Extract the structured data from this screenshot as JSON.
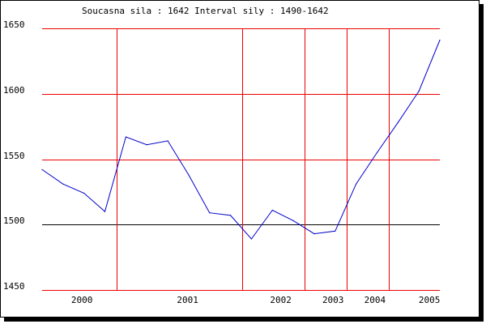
{
  "chart_data": {
    "type": "line",
    "title": "Soucasna sila : 1642  Interval sily : 1490-1642",
    "xlabel": "",
    "ylabel": "",
    "ylim": [
      1450,
      1650
    ],
    "y_ticks": [
      1450,
      1500,
      1550,
      1600,
      1650
    ],
    "x_year_labels": [
      "2000",
      "2001",
      "2002",
      "2003",
      "2004",
      "2005"
    ],
    "year_label_positions_index": [
      3.8,
      13.9,
      22.8,
      27.8,
      31.8,
      37.0
    ],
    "vertical_gridline_indices": [
      7.1,
      19.1,
      25.1,
      29.1,
      33.1
    ],
    "grid": true,
    "grid_color": "#ee0000",
    "baseline_value": 1500,
    "baseline_color": "#000000",
    "series": [
      {
        "color": "#0000cc",
        "x": [
          0,
          2,
          4,
          6,
          8,
          10,
          12,
          14,
          16,
          18,
          20,
          22,
          24,
          26,
          28,
          30,
          32,
          34,
          36,
          38
        ],
        "values": [
          1542,
          1531,
          1524,
          1510,
          1567,
          1561,
          1564,
          1538,
          1509,
          1507,
          1489,
          1511,
          1503,
          1493,
          1495,
          1531,
          1555,
          1578,
          1602,
          1641
        ]
      }
    ]
  }
}
